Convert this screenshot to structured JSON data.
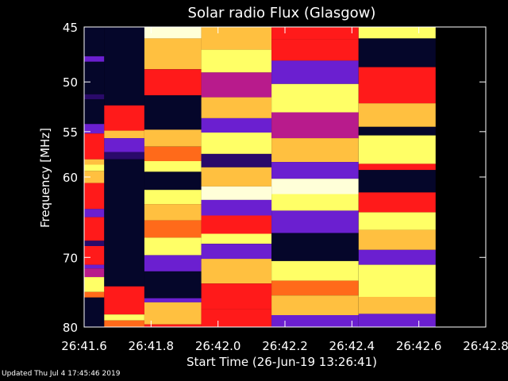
{
  "chart_data": {
    "type": "heatmap",
    "title": "Solar radio Flux (Glasgow)",
    "xlabel": "Start Time (26-Jun-19 13:26:41)",
    "ylabel": "Frequency [MHz]",
    "x_ticks": [
      "26:41.6",
      "26:41.8",
      "26:42.0",
      "26:42.2",
      "26:42.4",
      "26:42.6",
      "26:42.8"
    ],
    "y_ticks": [
      45,
      50,
      55,
      60,
      70,
      80
    ],
    "ylim": [
      45,
      80
    ],
    "y_scale": "log",
    "y_reversed": true,
    "xlim_seconds": [
      41.6,
      42.8
    ],
    "colormap": [
      "#05062a",
      "#2a0a6a",
      "#6b1fd0",
      "#b81b8c",
      "#ff1a1a",
      "#ff6a1a",
      "#ffc040",
      "#ffff66",
      "#ffffd8"
    ],
    "columns": [
      {
        "x_start": 41.6,
        "x_end": 41.66,
        "bands": [
          [
            45,
            47.6,
            0
          ],
          [
            47.6,
            48.1,
            2
          ],
          [
            48.1,
            51.2,
            0
          ],
          [
            51.2,
            51.7,
            1
          ],
          [
            51.7,
            54.2,
            0
          ],
          [
            54.2,
            55.2,
            2
          ],
          [
            55.2,
            58.0,
            4
          ],
          [
            58.0,
            58.6,
            6
          ],
          [
            58.6,
            59.3,
            7
          ],
          [
            59.3,
            60.7,
            6
          ],
          [
            60.7,
            63.8,
            4
          ],
          [
            63.8,
            64.8,
            2
          ],
          [
            64.8,
            67.8,
            4
          ],
          [
            67.8,
            68.5,
            1
          ],
          [
            68.5,
            71.0,
            4
          ],
          [
            71.0,
            71.5,
            2
          ],
          [
            71.5,
            72.7,
            3
          ],
          [
            72.7,
            74.8,
            7
          ],
          [
            74.8,
            75.6,
            5
          ],
          [
            75.6,
            80,
            0
          ]
        ]
      },
      {
        "x_start": 41.66,
        "x_end": 41.78,
        "bands": [
          [
            45,
            52.3,
            0
          ],
          [
            52.3,
            54.9,
            4
          ],
          [
            54.9,
            55.7,
            6
          ],
          [
            55.7,
            57.2,
            2
          ],
          [
            57.2,
            58.0,
            1
          ],
          [
            58.0,
            74.0,
            0
          ],
          [
            74.0,
            78.1,
            4
          ],
          [
            78.1,
            79.0,
            7
          ],
          [
            79.0,
            80,
            5
          ]
        ]
      },
      {
        "x_start": 41.78,
        "x_end": 41.95,
        "bands": [
          [
            45,
            46.0,
            8
          ],
          [
            46.0,
            48.8,
            6
          ],
          [
            48.8,
            51.3,
            4
          ],
          [
            51.3,
            54.8,
            0
          ],
          [
            54.8,
            56.6,
            6
          ],
          [
            56.6,
            58.2,
            5
          ],
          [
            58.2,
            59.4,
            7
          ],
          [
            59.4,
            61.5,
            0
          ],
          [
            61.5,
            63.2,
            7
          ],
          [
            63.2,
            65.2,
            6
          ],
          [
            65.2,
            67.4,
            5
          ],
          [
            67.4,
            69.7,
            7
          ],
          [
            69.7,
            71.9,
            2
          ],
          [
            71.9,
            75.7,
            0
          ],
          [
            75.7,
            76.3,
            2
          ],
          [
            76.3,
            79.6,
            6
          ],
          [
            79.6,
            80,
            4
          ]
        ]
      },
      {
        "x_start": 41.95,
        "x_end": 42.16,
        "bands": [
          [
            45,
            47.0,
            6
          ],
          [
            47.0,
            49.1,
            7
          ],
          [
            49.1,
            51.5,
            3
          ],
          [
            51.5,
            53.6,
            6
          ],
          [
            53.6,
            55.1,
            2
          ],
          [
            55.1,
            57.4,
            7
          ],
          [
            57.4,
            58.9,
            1
          ],
          [
            58.9,
            61.1,
            6
          ],
          [
            61.1,
            62.7,
            8
          ],
          [
            62.7,
            64.6,
            2
          ],
          [
            64.6,
            66.9,
            4
          ],
          [
            66.9,
            68.2,
            7
          ],
          [
            68.2,
            70.2,
            2
          ],
          [
            70.2,
            73.6,
            6
          ],
          [
            73.6,
            77.3,
            4
          ],
          [
            77.3,
            80,
            4
          ]
        ]
      },
      {
        "x_start": 42.16,
        "x_end": 42.42,
        "bands": [
          [
            45,
            46.1,
            4
          ],
          [
            46.1,
            48.0,
            4
          ],
          [
            48.0,
            50.2,
            2
          ],
          [
            50.2,
            53.0,
            7
          ],
          [
            53.0,
            55.7,
            3
          ],
          [
            55.7,
            58.3,
            6
          ],
          [
            58.3,
            60.2,
            2
          ],
          [
            60.2,
            62.0,
            8
          ],
          [
            62.0,
            64.0,
            7
          ],
          [
            64.0,
            66.8,
            2
          ],
          [
            66.8,
            70.5,
            0
          ],
          [
            70.5,
            73.2,
            7
          ],
          [
            73.2,
            75.3,
            5
          ],
          [
            75.3,
            78.2,
            6
          ],
          [
            78.2,
            80,
            2
          ]
        ]
      },
      {
        "x_start": 42.42,
        "x_end": 42.65,
        "bands": [
          [
            45,
            46.0,
            7
          ],
          [
            46.0,
            48.6,
            0
          ],
          [
            48.6,
            52.1,
            4
          ],
          [
            52.1,
            54.5,
            6
          ],
          [
            54.5,
            55.4,
            0
          ],
          [
            55.4,
            58.5,
            7
          ],
          [
            58.5,
            59.2,
            4
          ],
          [
            59.2,
            61.8,
            0
          ],
          [
            61.8,
            64.2,
            4
          ],
          [
            64.2,
            66.4,
            7
          ],
          [
            66.4,
            69.0,
            6
          ],
          [
            69.0,
            71.0,
            2
          ],
          [
            71.0,
            75.5,
            7
          ],
          [
            75.5,
            78.0,
            6
          ],
          [
            78.0,
            80,
            2
          ]
        ]
      }
    ]
  },
  "footer": "Updated Thu Jul  4 17:45:46 2019"
}
